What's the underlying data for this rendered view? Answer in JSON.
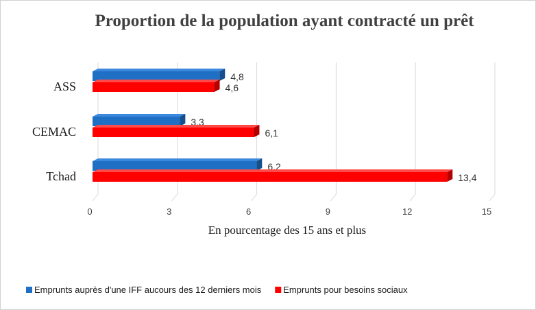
{
  "chart_data": {
    "type": "bar",
    "orientation": "horizontal",
    "title": "Proportion de la population ayant contracté un prêt",
    "xlabel": "En pourcentage des 15 ans et plus",
    "ylabel": "",
    "categories": [
      "ASS",
      "CEMAC",
      "Tchad"
    ],
    "xlim": [
      0,
      15
    ],
    "xticks": [
      0,
      3,
      6,
      9,
      12,
      15
    ],
    "grid": true,
    "legend_position": "bottom",
    "series": [
      {
        "name": "Emprunts auprès d'une IFF aucours des 12 derniers mois",
        "color": "#1f6fc4",
        "values": [
          4.8,
          3.3,
          6.2
        ],
        "labels": [
          "4,8",
          "3,3",
          "6,2"
        ]
      },
      {
        "name": "Emprunts pour besoins sociaux",
        "color": "#ff0000",
        "values": [
          4.6,
          6.1,
          13.4
        ],
        "labels": [
          "4,6",
          "6,1",
          "13,4"
        ]
      }
    ]
  }
}
